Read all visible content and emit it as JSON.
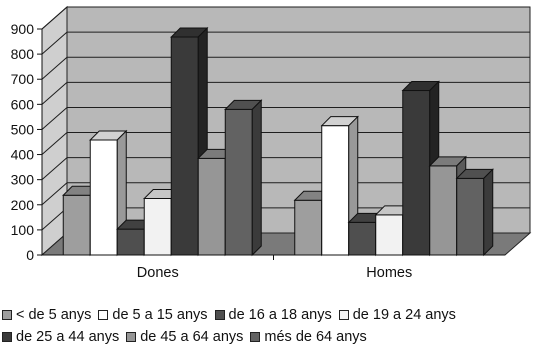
{
  "chart_data": {
    "type": "bar",
    "categories": [
      "Dones",
      "Homes"
    ],
    "series": [
      {
        "name": "< de 5 anys",
        "values": [
          238,
          218
        ],
        "color": "#9e9e9e"
      },
      {
        "name": "de 5 a 15 anys",
        "values": [
          458,
          515
        ],
        "color": "#ffffff"
      },
      {
        "name": "de 16 a 18 anys",
        "values": [
          103,
          130
        ],
        "color": "#4f4f4f"
      },
      {
        "name": "de 19 a 24 anys",
        "values": [
          225,
          160
        ],
        "color": "#f2f2f2"
      },
      {
        "name": "de 25 a 44 anys",
        "values": [
          868,
          655
        ],
        "color": "#3a3a3a"
      },
      {
        "name": "de 45 a 64 anys",
        "values": [
          385,
          355
        ],
        "color": "#969696"
      },
      {
        "name": "més de 64 anys",
        "values": [
          580,
          305
        ],
        "color": "#626262"
      }
    ],
    "ylim": [
      0,
      900
    ],
    "yticks": [
      "0",
      "100",
      "200",
      "300",
      "400",
      "500",
      "600",
      "700",
      "800",
      "900"
    ],
    "grid": true,
    "legend_position": "bottom",
    "background_color": "#b8b8b8",
    "floor_color": "#7a7a7a",
    "three_d": true
  }
}
